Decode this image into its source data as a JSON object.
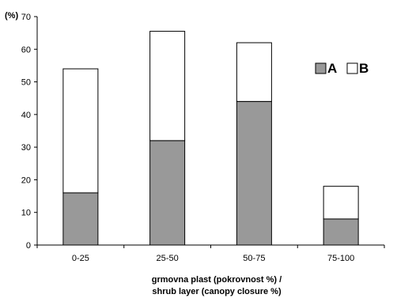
{
  "chart_data": {
    "type": "bar",
    "stacked": true,
    "unit_label": "(%)",
    "categories": [
      "0-25",
      "25-50",
      "50-75",
      "75-100"
    ],
    "series": [
      {
        "name": "A",
        "values": [
          16,
          32,
          44,
          8
        ],
        "color": "#999999"
      },
      {
        "name": "B",
        "values": [
          38,
          33.5,
          18,
          10
        ],
        "color": "#ffffff"
      }
    ],
    "ylim": [
      0,
      70
    ],
    "yticks": [
      0,
      10,
      20,
      30,
      40,
      50,
      60,
      70
    ],
    "xlabel_line1": "grmovna plast (pokrovnost %) /",
    "xlabel_line2": "shrub layer (canopy closure %)",
    "legend_position": "right",
    "grid": false
  }
}
